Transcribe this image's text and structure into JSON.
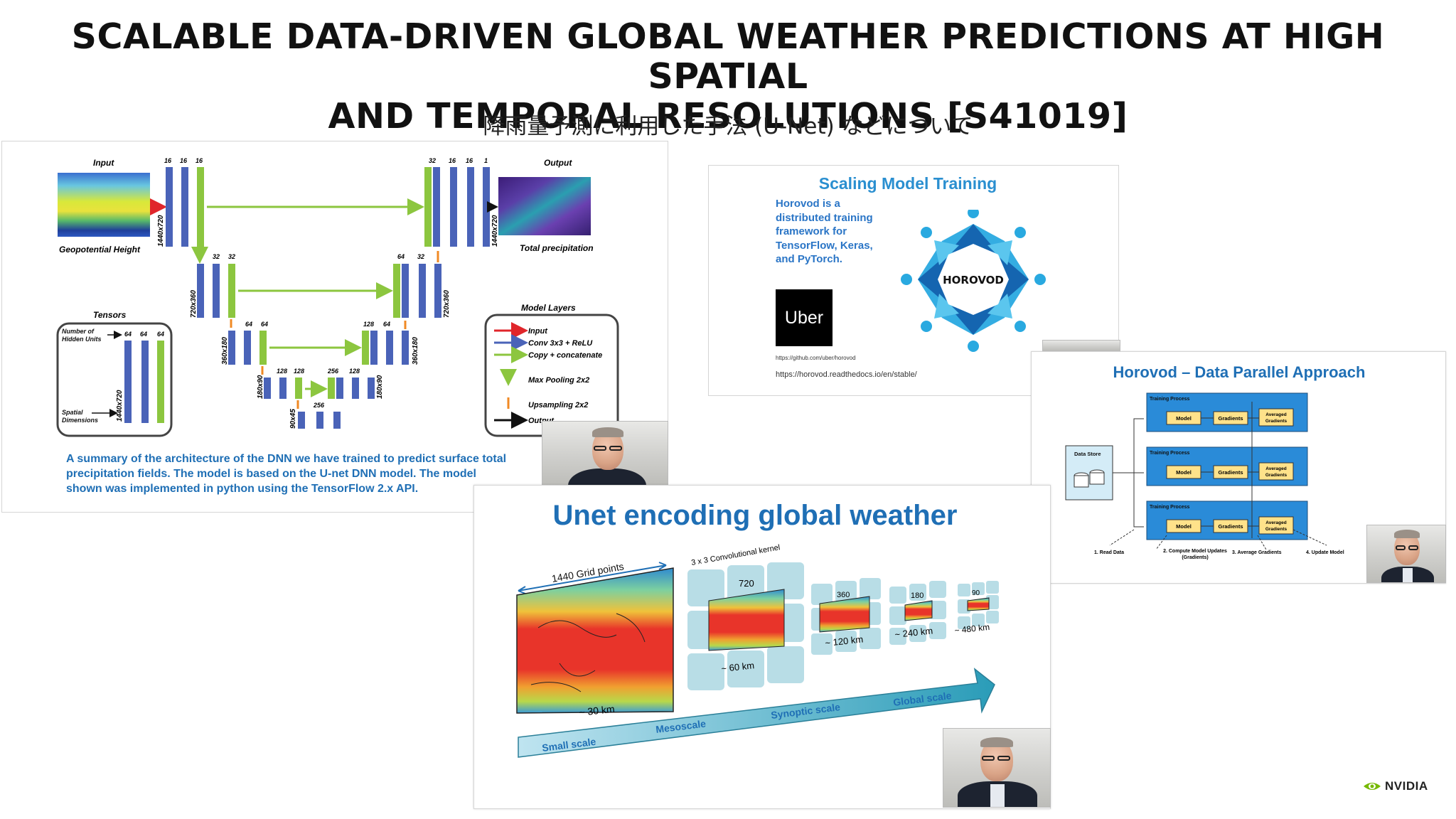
{
  "slide": {
    "title_line1": "SCALABLE DATA-DRIVEN GLOBAL WEATHER PREDICTIONS AT HIGH SPATIAL",
    "title_line2": "AND TEMPORAL RESOLUTIONS [S41019]",
    "subtitle": "降雨量予測に利用した手法 (U-Net) などについて",
    "brand": "NVIDIA"
  },
  "unet_panel": {
    "input_label": "Input",
    "input_caption": "Geopotential Height",
    "output_label": "Output",
    "output_caption": "Total precipitation",
    "dims": [
      "1440x720",
      "720x360",
      "360x180",
      "180x90",
      "90x45"
    ],
    "enc_counts": {
      "l1": [
        "16",
        "16",
        "16"
      ],
      "l2": [
        "32",
        "32"
      ],
      "l3": [
        "64",
        "64"
      ],
      "l4": [
        "128",
        "128"
      ],
      "l5": "256"
    },
    "dec_counts": {
      "l1": [
        "32",
        "16",
        "16",
        "1"
      ],
      "l2": [
        "64",
        "32"
      ],
      "l3": [
        "128",
        "64"
      ],
      "l4": [
        "256",
        "128"
      ]
    },
    "tensors": {
      "title": "Tensors",
      "hidden_units": "Number of Hidden Units",
      "counts": [
        "64",
        "64",
        "64"
      ],
      "spatial": "Spatial Dimensions",
      "dim": "1440x720"
    },
    "legend": {
      "title": "Model Layers",
      "items": [
        "Input",
        "Conv 3x3 + ReLU",
        "Copy + concatenate",
        "Max Pooling 2x2",
        "Upsampling 2x2",
        "Output"
      ]
    },
    "summary": "A summary of the architecture of the DNN we have trained to predict surface total precipitation fields. The model is based on the U-net DNN model. The model shown was implemented in python using the TensorFlow 2.x API."
  },
  "scaling_panel": {
    "title": "Scaling Model Training",
    "body": "Horovod is a distributed training framework for TensorFlow, Keras, and PyTorch.",
    "logo_text": "Uber",
    "horovod_label": "HOROVOD",
    "link1": "https://github.com/uber/horovod",
    "link2": "https://horovod.readthedocs.io/en/stable/"
  },
  "horovod_panel": {
    "title": "Horovod – Data Parallel Approach",
    "data_store": "Data Store",
    "process_label": "Training Process",
    "boxes": [
      "Model",
      "Gradients",
      "Averaged Gradients"
    ],
    "steps": [
      "1. Read Data",
      "2. Compute Model Updates (Gradients)",
      "3. Average Gradients",
      "4. Update Model"
    ]
  },
  "weather_panel": {
    "title": "Unet encoding global weather",
    "grid_points": "1440 Grid points",
    "kernel": "3 x 3 Convolutional kernel",
    "resolutions": [
      "720",
      "360",
      "180",
      "90"
    ],
    "distances": [
      "~ 30 km",
      "~ 60 km",
      "~ 120 km",
      "~ 240 km",
      "~ 480 km"
    ],
    "scales": [
      "Small scale",
      "Mesoscale",
      "Synoptic scale",
      "Global scale"
    ]
  },
  "colors": {
    "accent_blue": "#1f6fb5",
    "conv_blue": "#4a63b8",
    "concat_green": "#8cc63f",
    "pool_orange": "#f08a24",
    "input_red": "#e0262b",
    "nvidia_green": "#76b900",
    "horovod_teal": "#29a9e0"
  }
}
